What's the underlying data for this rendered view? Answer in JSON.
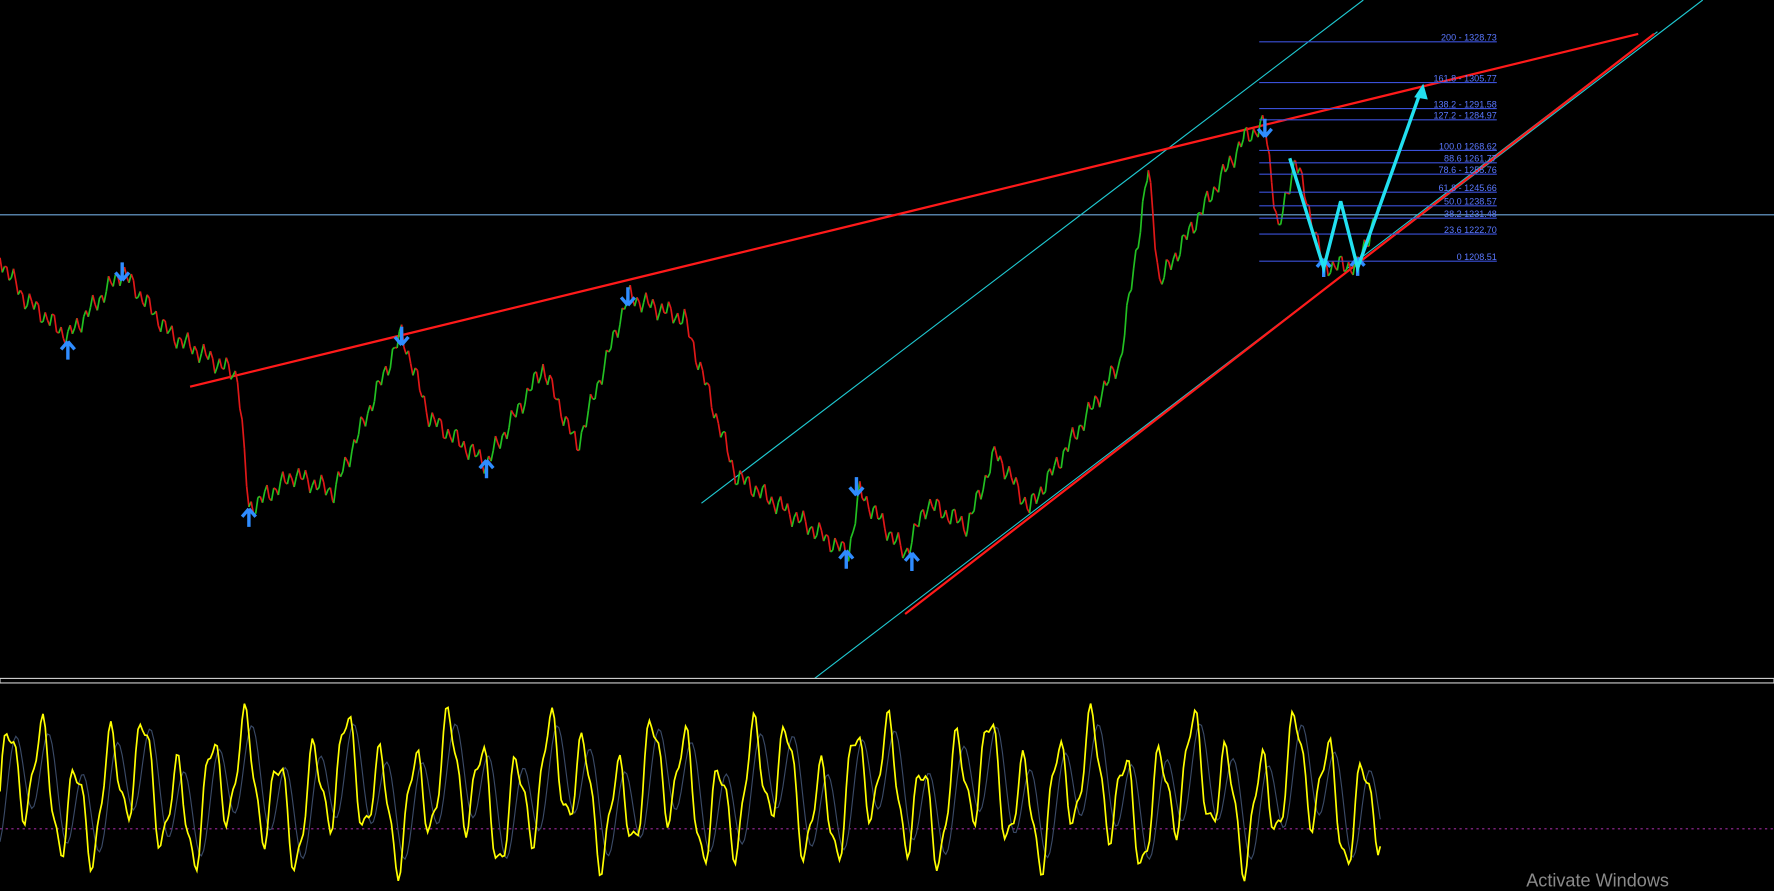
{
  "fib_levels": [
    "200 - 1328.73",
    "161.8 - 1305.77",
    "138.2 - 1291.58",
    "127.2 - 1284.97",
    "100.0 1268.62",
    "88.6 1261.77",
    "78.6 - 1255.76",
    "61.8 - 1245.66",
    "50.0 1238.57",
    "38.2 1231.48",
    "23.6 1222.70",
    "0 1208.51"
  ],
  "watermark": "Activate Windows"
}
